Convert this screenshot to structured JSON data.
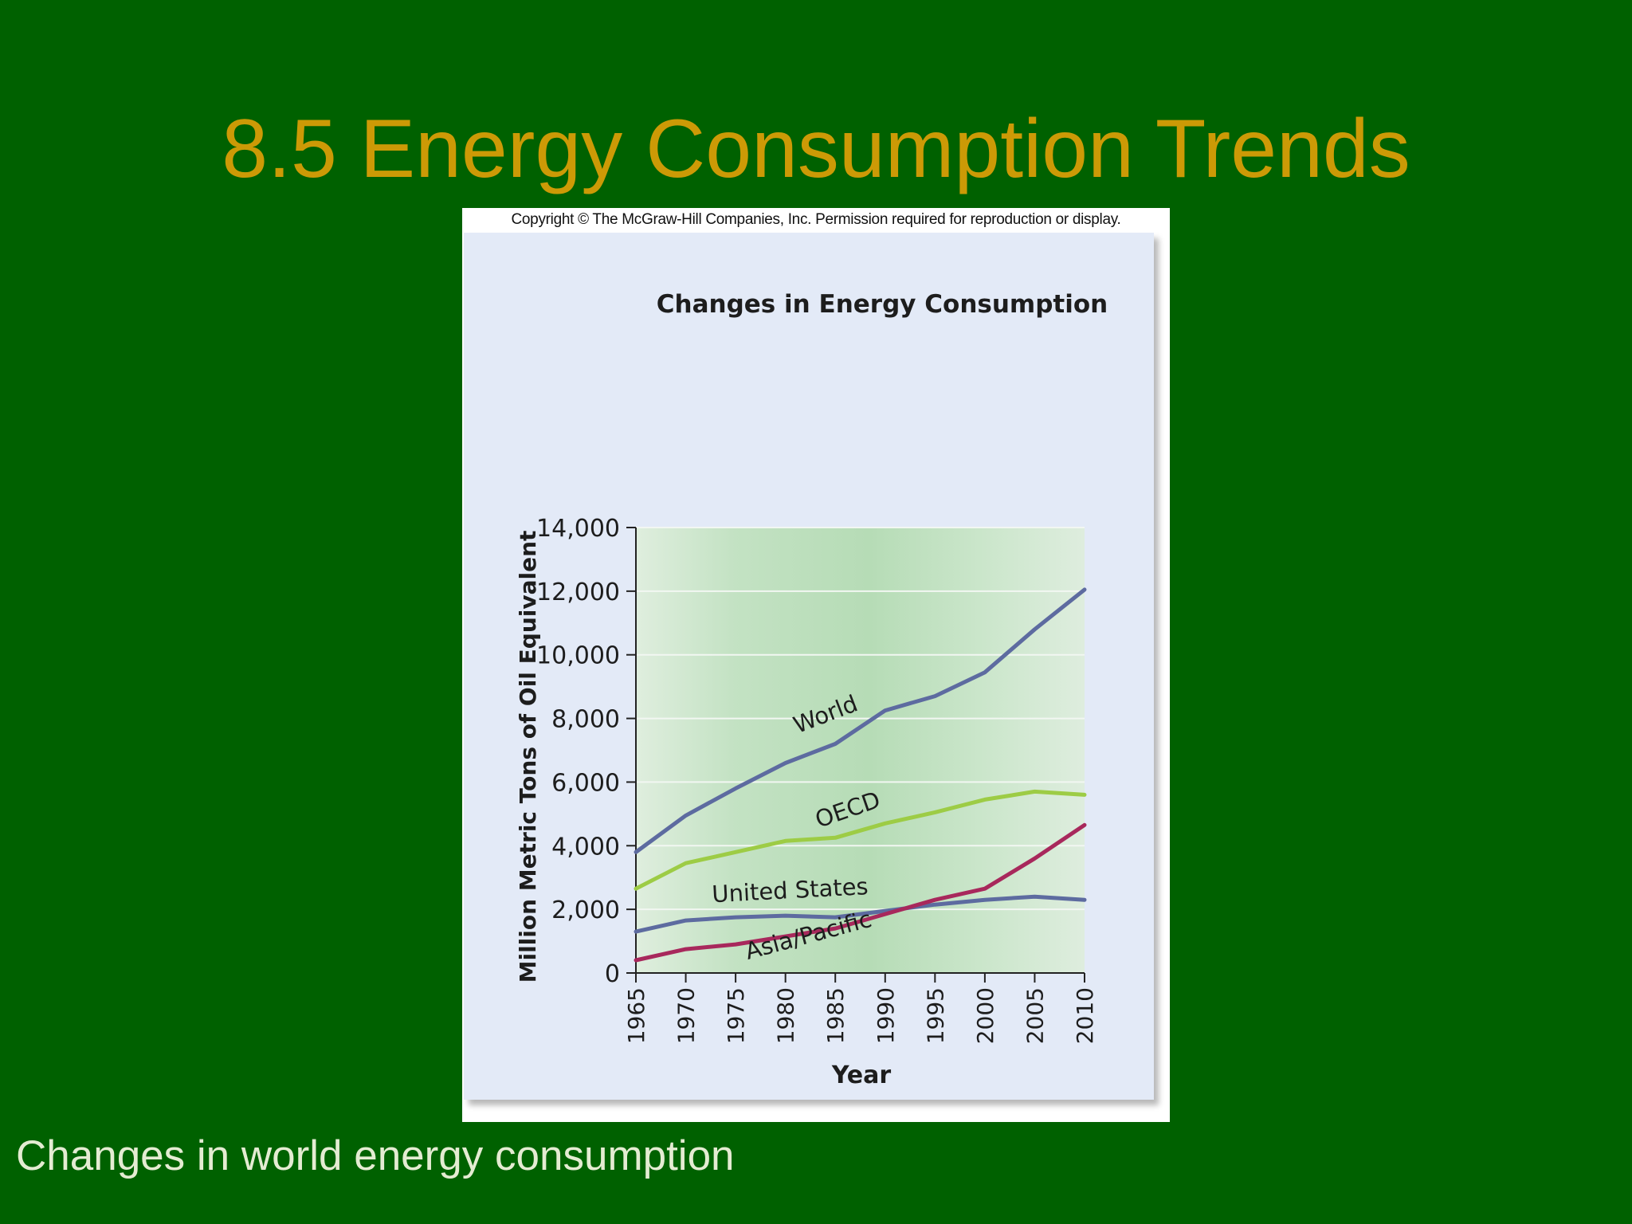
{
  "slide": {
    "title": "8.5 Energy Consumption Trends",
    "caption": "Changes in world energy consumption"
  },
  "figure": {
    "copyright": "Copyright © The McGraw-Hill Companies, Inc. Permission required for reproduction or display."
  },
  "chart_data": {
    "type": "line",
    "title": "Changes in Energy Consumption",
    "xlabel": "Year",
    "ylabel": "Million Metric Tons of Oil Equivalent",
    "xlim": [
      1965,
      2010
    ],
    "ylim": [
      0,
      14000
    ],
    "x_ticks": [
      1965,
      1970,
      1975,
      1980,
      1985,
      1990,
      1995,
      2000,
      2005,
      2010
    ],
    "y_ticks": [
      0,
      2000,
      4000,
      6000,
      8000,
      10000,
      12000,
      14000
    ],
    "y_tick_labels": [
      "0",
      "2,000",
      "4,000",
      "6,000",
      "8,000",
      "10,000",
      "12,000",
      "14,000"
    ],
    "grid": "horizontal",
    "legend": "inline labels",
    "x": [
      1965,
      1970,
      1975,
      1980,
      1985,
      1990,
      1995,
      2000,
      2005,
      2010
    ],
    "series": [
      {
        "name": "World",
        "color": "#5d6ba0",
        "values": [
          3800,
          4950,
          5800,
          6600,
          7200,
          8250,
          8700,
          9450,
          10800,
          12050
        ]
      },
      {
        "name": "OECD",
        "color": "#9dcc45",
        "values": [
          2650,
          3450,
          3800,
          4150,
          4250,
          4700,
          5050,
          5450,
          5700,
          5600
        ]
      },
      {
        "name": "United States",
        "color": "#5d6ba0",
        "values": [
          1300,
          1650,
          1750,
          1800,
          1750,
          1950,
          2150,
          2300,
          2400,
          2300
        ]
      },
      {
        "name": "Asia/Pacific",
        "color": "#a8285c",
        "values": [
          400,
          750,
          900,
          1150,
          1400,
          1850,
          2300,
          2650,
          3600,
          4650
        ]
      }
    ]
  }
}
